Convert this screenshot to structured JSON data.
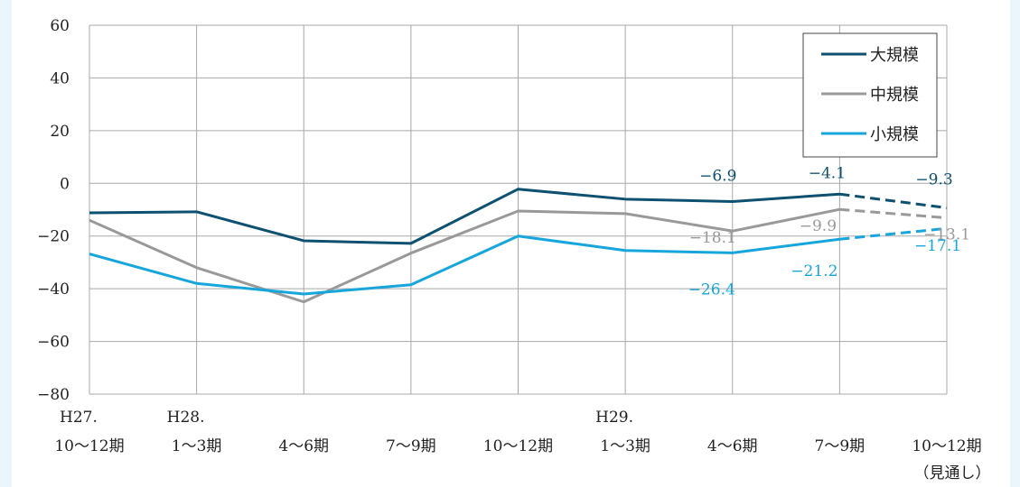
{
  "chart_data": {
    "type": "line",
    "x_periods": [
      {
        "top": "H27.",
        "bottom": "10～12期"
      },
      {
        "top": "H28.",
        "bottom": "1～3期"
      },
      {
        "top": "",
        "bottom": "4～6期"
      },
      {
        "top": "",
        "bottom": "7～9期"
      },
      {
        "top": "",
        "bottom": "10～12期"
      },
      {
        "top": "H29.",
        "bottom": "1～3期"
      },
      {
        "top": "",
        "bottom": "4～6期"
      },
      {
        "top": "",
        "bottom": "7～9期"
      },
      {
        "top": "",
        "bottom": "10～12期",
        "note": "（見通し）"
      }
    ],
    "y_ticks": [
      60,
      40,
      20,
      0,
      -20,
      -40,
      -60,
      -80
    ],
    "ylim": [
      -80,
      60
    ],
    "grid": true,
    "legend_position": "top-right",
    "forecast_from_index": 7,
    "series": [
      {
        "name": "大規模",
        "color": "#0d5070",
        "values": [
          -11.2,
          -10.8,
          -21.8,
          -22.8,
          -2.2,
          -6.0,
          -6.9,
          -4.1,
          -9.3
        ],
        "labels": [
          {
            "index": 6,
            "text": "−6.9"
          },
          {
            "index": 7,
            "text": "−4.1"
          },
          {
            "index": 8,
            "text": "−9.3"
          }
        ]
      },
      {
        "name": "中規模",
        "color": "#999999",
        "values": [
          -14.0,
          -32.0,
          -45.0,
          -26.5,
          -10.5,
          -11.5,
          -18.1,
          -9.9,
          -13.1
        ],
        "labels": [
          {
            "index": 6,
            "text": "−18.1"
          },
          {
            "index": 7,
            "text": "−9.9"
          },
          {
            "index": 8,
            "text": "−13.1"
          }
        ]
      },
      {
        "name": "小規模",
        "color": "#17a6dc",
        "values": [
          -26.8,
          -38.0,
          -42.0,
          -38.5,
          -20.0,
          -25.5,
          -26.4,
          -21.2,
          -17.1
        ],
        "labels": [
          {
            "index": 6,
            "text": "−26.4"
          },
          {
            "index": 7,
            "text": "−21.2"
          },
          {
            "index": 8,
            "text": "−17.1"
          }
        ]
      }
    ]
  }
}
